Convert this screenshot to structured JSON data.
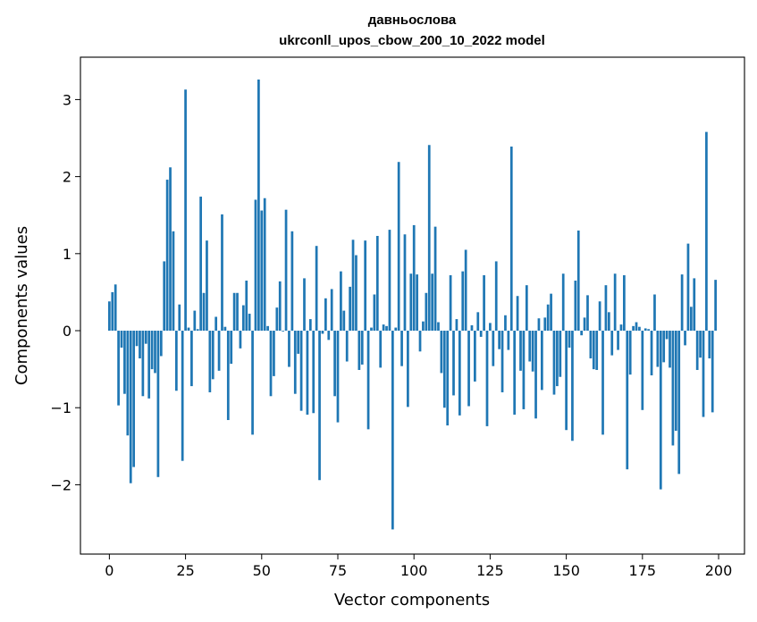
{
  "chart_data": {
    "type": "bar",
    "title": "давньослова",
    "subtitle": "ukrconll_upos_cbow_200_10_2022 model",
    "xlabel": "Vector components",
    "ylabel": "Components values",
    "xlim": [
      -9.5,
      208.5
    ],
    "ylim": [
      -2.9,
      3.55
    ],
    "xticks": [
      0,
      25,
      50,
      75,
      100,
      125,
      150,
      175,
      200
    ],
    "yticks": [
      -2,
      -1,
      0,
      1,
      2,
      3
    ],
    "bar_color": "#1f77b4",
    "grid": false,
    "x": [
      0,
      1,
      2,
      3,
      4,
      5,
      6,
      7,
      8,
      9,
      10,
      11,
      12,
      13,
      14,
      15,
      16,
      17,
      18,
      19,
      20,
      21,
      22,
      23,
      24,
      25,
      26,
      27,
      28,
      29,
      30,
      31,
      32,
      33,
      34,
      35,
      36,
      37,
      38,
      39,
      40,
      41,
      42,
      43,
      44,
      45,
      46,
      47,
      48,
      49,
      50,
      51,
      52,
      53,
      54,
      55,
      56,
      57,
      58,
      59,
      60,
      61,
      62,
      63,
      64,
      65,
      66,
      67,
      68,
      69,
      70,
      71,
      72,
      73,
      74,
      75,
      76,
      77,
      78,
      79,
      80,
      81,
      82,
      83,
      84,
      85,
      86,
      87,
      88,
      89,
      90,
      91,
      92,
      93,
      94,
      95,
      96,
      97,
      98,
      99,
      100,
      101,
      102,
      103,
      104,
      105,
      106,
      107,
      108,
      109,
      110,
      111,
      112,
      113,
      114,
      115,
      116,
      117,
      118,
      119,
      120,
      121,
      122,
      123,
      124,
      125,
      126,
      127,
      128,
      129,
      130,
      131,
      132,
      133,
      134,
      135,
      136,
      137,
      138,
      139,
      140,
      141,
      142,
      143,
      144,
      145,
      146,
      147,
      148,
      149,
      150,
      151,
      152,
      153,
      154,
      155,
      156,
      157,
      158,
      159,
      160,
      161,
      162,
      163,
      164,
      165,
      166,
      167,
      168,
      169,
      170,
      171,
      172,
      173,
      174,
      175,
      176,
      177,
      178,
      179,
      180,
      181,
      182,
      183,
      184,
      185,
      186,
      187,
      188,
      189,
      190,
      191,
      192,
      193,
      194,
      195,
      196,
      197,
      198,
      199
    ],
    "values": [
      0.38,
      0.5,
      0.6,
      -0.97,
      -0.22,
      -0.82,
      -1.36,
      -1.98,
      -1.77,
      -0.2,
      -0.36,
      -0.85,
      -0.17,
      -0.88,
      -0.5,
      -0.55,
      -1.9,
      -0.33,
      0.9,
      1.96,
      2.12,
      1.29,
      -0.78,
      0.34,
      -1.69,
      3.13,
      0.04,
      -0.72,
      0.26,
      0.02,
      1.74,
      0.49,
      1.17,
      -0.8,
      -0.63,
      0.18,
      -0.52,
      1.51,
      0.05,
      -1.16,
      -0.43,
      0.49,
      0.49,
      -0.23,
      0.33,
      0.65,
      0.22,
      -1.35,
      1.7,
      3.26,
      1.56,
      1.72,
      0.06,
      -0.85,
      -0.59,
      0.3,
      0.64,
      -0.01,
      1.57,
      -0.47,
      1.29,
      -0.82,
      -0.3,
      -1.04,
      0.68,
      -1.09,
      0.15,
      -1.07,
      1.1,
      -1.94,
      -0.04,
      0.42,
      -0.12,
      0.54,
      -0.85,
      -1.19,
      0.77,
      0.26,
      -0.4,
      0.57,
      1.18,
      0.98,
      -0.51,
      -0.44,
      1.17,
      -1.28,
      0.04,
      0.47,
      1.23,
      -0.48,
      0.08,
      0.06,
      1.31,
      -2.58,
      0.04,
      2.19,
      -0.46,
      1.25,
      -0.99,
      0.74,
      1.37,
      0.73,
      -0.27,
      0.12,
      0.49,
      2.41,
      0.74,
      1.35,
      0.11,
      -0.55,
      -1.0,
      -1.23,
      0.72,
      -0.84,
      0.15,
      -1.1,
      0.77,
      1.05,
      -0.98,
      0.07,
      -0.66,
      0.24,
      -0.08,
      0.72,
      -1.24,
      0.1,
      -0.46,
      0.9,
      -0.24,
      -0.8,
      0.2,
      -0.25,
      2.39,
      -1.09,
      0.45,
      -0.52,
      -1.02,
      0.59,
      -0.4,
      -0.53,
      -1.14,
      0.16,
      -0.77,
      0.17,
      0.34,
      0.48,
      -0.83,
      -0.72,
      -0.6,
      0.74,
      -1.29,
      -0.22,
      -1.43,
      0.65,
      1.3,
      -0.06,
      0.17,
      0.46,
      -0.36,
      -0.5,
      -0.51,
      0.38,
      -1.35,
      0.59,
      0.24,
      -0.32,
      0.74,
      -0.25,
      0.08,
      0.72,
      -1.8,
      -0.57,
      0.06,
      0.11,
      0.05,
      -1.03,
      0.03,
      0.02,
      -0.58,
      0.47,
      -0.47,
      -2.06,
      -0.41,
      -0.11,
      -0.48,
      -1.49,
      -1.3,
      -1.86,
      0.73,
      -0.19,
      1.13,
      0.31,
      0.68,
      -0.51,
      -0.35,
      -1.12,
      2.58,
      -0.36,
      -1.06,
      0.66
    ]
  }
}
